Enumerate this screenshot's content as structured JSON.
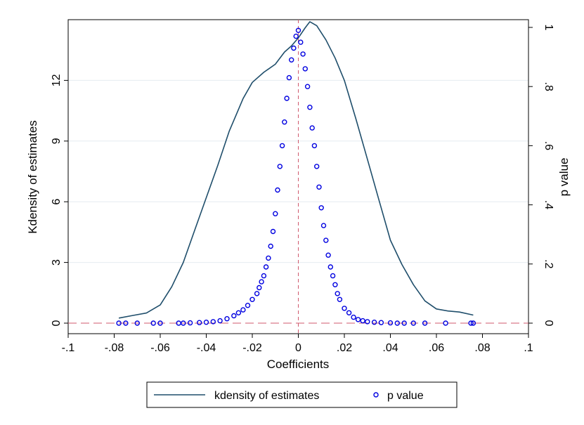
{
  "chart_data": {
    "type": "line+scatter",
    "title": "",
    "xlabel": "Coefficients",
    "ylabel_left": "Kdensity of estimates",
    "ylabel_right": "p value",
    "xlim": [
      -0.1,
      0.1
    ],
    "ylim_left": [
      0,
      15
    ],
    "ylim_right": [
      0,
      1
    ],
    "x_ticks": [
      -0.1,
      -0.08,
      -0.06,
      -0.04,
      -0.02,
      0,
      0.02,
      0.04,
      0.06,
      0.08,
      0.1
    ],
    "x_tick_labels": [
      "-.1",
      "-.08",
      "-.06",
      "-.04",
      "-.02",
      "0",
      ".02",
      ".04",
      ".06",
      ".08",
      ".1"
    ],
    "y_left_ticks": [
      0,
      3,
      6,
      9,
      12
    ],
    "y_left_tick_labels": [
      "0",
      "3",
      "6",
      "9",
      "12"
    ],
    "y_right_ticks": [
      0,
      0.2,
      0.4,
      0.6,
      0.8,
      1
    ],
    "y_right_tick_labels": [
      "0",
      ".2",
      ".4",
      ".6",
      ".8",
      "1"
    ],
    "grid": true,
    "reference_lines": {
      "x": 0,
      "y_left": 0
    },
    "legend_position": "bottom",
    "colors": {
      "kdensity": "#1f4e6b",
      "pvalue": "#0000e0",
      "refline": "#d05a6e",
      "grid": "#e6ecf0"
    },
    "series": [
      {
        "name": "kdensity of estimates",
        "kind": "line",
        "axis": "left",
        "x": [
          -0.078,
          -0.072,
          -0.066,
          -0.06,
          -0.055,
          -0.05,
          -0.045,
          -0.04,
          -0.035,
          -0.03,
          -0.027,
          -0.024,
          -0.02,
          -0.015,
          -0.01,
          -0.006,
          -0.003,
          0,
          0.003,
          0.005,
          0.008,
          0.012,
          0.016,
          0.02,
          0.025,
          0.03,
          0.035,
          0.04,
          0.045,
          0.05,
          0.055,
          0.06,
          0.065,
          0.07,
          0.076
        ],
        "y": [
          0.25,
          0.38,
          0.5,
          0.9,
          1.8,
          3.0,
          4.6,
          6.2,
          7.8,
          9.5,
          10.3,
          11.1,
          11.9,
          12.4,
          12.8,
          13.4,
          13.7,
          14.1,
          14.6,
          14.9,
          14.7,
          14.0,
          13.1,
          12.0,
          10.1,
          8.1,
          6.1,
          4.1,
          2.9,
          1.9,
          1.1,
          0.7,
          0.6,
          0.55,
          0.4
        ]
      },
      {
        "name": "p value",
        "kind": "scatter",
        "axis": "right",
        "x": [
          -0.078,
          -0.075,
          -0.07,
          -0.063,
          -0.06,
          -0.052,
          -0.05,
          -0.047,
          -0.043,
          -0.04,
          -0.037,
          -0.034,
          -0.031,
          -0.028,
          -0.026,
          -0.024,
          -0.022,
          -0.02,
          -0.018,
          -0.017,
          -0.016,
          -0.015,
          -0.014,
          -0.013,
          -0.012,
          -0.011,
          -0.01,
          -0.009,
          -0.008,
          -0.007,
          -0.006,
          -0.005,
          -0.004,
          -0.003,
          -0.002,
          -0.001,
          0,
          0.001,
          0.002,
          0.003,
          0.004,
          0.005,
          0.006,
          0.007,
          0.008,
          0.009,
          0.01,
          0.011,
          0.012,
          0.013,
          0.014,
          0.015,
          0.016,
          0.017,
          0.018,
          0.02,
          0.022,
          0.024,
          0.026,
          0.028,
          0.03,
          0.033,
          0.036,
          0.04,
          0.043,
          0.046,
          0.05,
          0.055,
          0.064,
          0.075,
          0.076
        ],
        "y": [
          0,
          0,
          0,
          0,
          0,
          0,
          0,
          0.001,
          0.002,
          0.003,
          0.005,
          0.008,
          0.015,
          0.025,
          0.035,
          0.045,
          0.06,
          0.08,
          0.1,
          0.12,
          0.14,
          0.16,
          0.19,
          0.22,
          0.26,
          0.31,
          0.37,
          0.45,
          0.53,
          0.6,
          0.68,
          0.76,
          0.83,
          0.89,
          0.93,
          0.97,
          0.99,
          0.95,
          0.91,
          0.86,
          0.8,
          0.73,
          0.66,
          0.6,
          0.53,
          0.46,
          0.39,
          0.33,
          0.28,
          0.23,
          0.19,
          0.16,
          0.13,
          0.1,
          0.08,
          0.05,
          0.035,
          0.02,
          0.012,
          0.008,
          0.005,
          0.003,
          0.002,
          0.001,
          0,
          0,
          0,
          0,
          0,
          0,
          0
        ]
      }
    ]
  }
}
